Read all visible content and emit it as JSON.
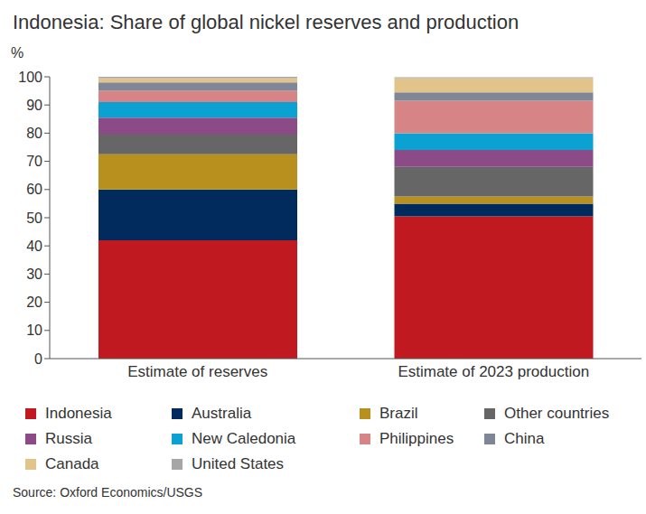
{
  "chart_data": {
    "type": "bar",
    "title": "Indonesia: Share of global nickel reserves and production",
    "y_label": "%",
    "source": "Source: Oxford Economics/USGS",
    "categories": [
      "Estimate of reserves",
      "Estimate of 2023 production"
    ],
    "stacked": true,
    "grid": false,
    "legend": "bottom",
    "ylim": [
      0,
      100
    ],
    "yticks": [
      0,
      10,
      20,
      30,
      40,
      50,
      60,
      70,
      80,
      90,
      100
    ],
    "series": [
      {
        "name": "Indonesia",
        "color": "#c0191f",
        "values": [
          42,
          50.5
        ]
      },
      {
        "name": "Australia",
        "color": "#002b5c",
        "values": [
          18,
          4.5
        ]
      },
      {
        "name": "Brazil",
        "color": "#b8901e",
        "values": [
          12.5,
          2.5
        ]
      },
      {
        "name": "Other countries",
        "color": "#666666",
        "values": [
          7,
          10.5
        ]
      },
      {
        "name": "Russia",
        "color": "#8b4b86",
        "values": [
          6,
          6
        ]
      },
      {
        "name": "New Caledonia",
        "color": "#0ba2d3",
        "values": [
          5.5,
          6
        ]
      },
      {
        "name": "Philippines",
        "color": "#d78487",
        "values": [
          4,
          11.5
        ]
      },
      {
        "name": "China",
        "color": "#7f8797",
        "values": [
          3,
          3
        ]
      },
      {
        "name": "Canada",
        "color": "#e2c38a",
        "values": [
          1.5,
          5
        ]
      },
      {
        "name": "United States",
        "color": "#a6a6a6",
        "values": [
          0.5,
          0.3
        ]
      }
    ]
  }
}
